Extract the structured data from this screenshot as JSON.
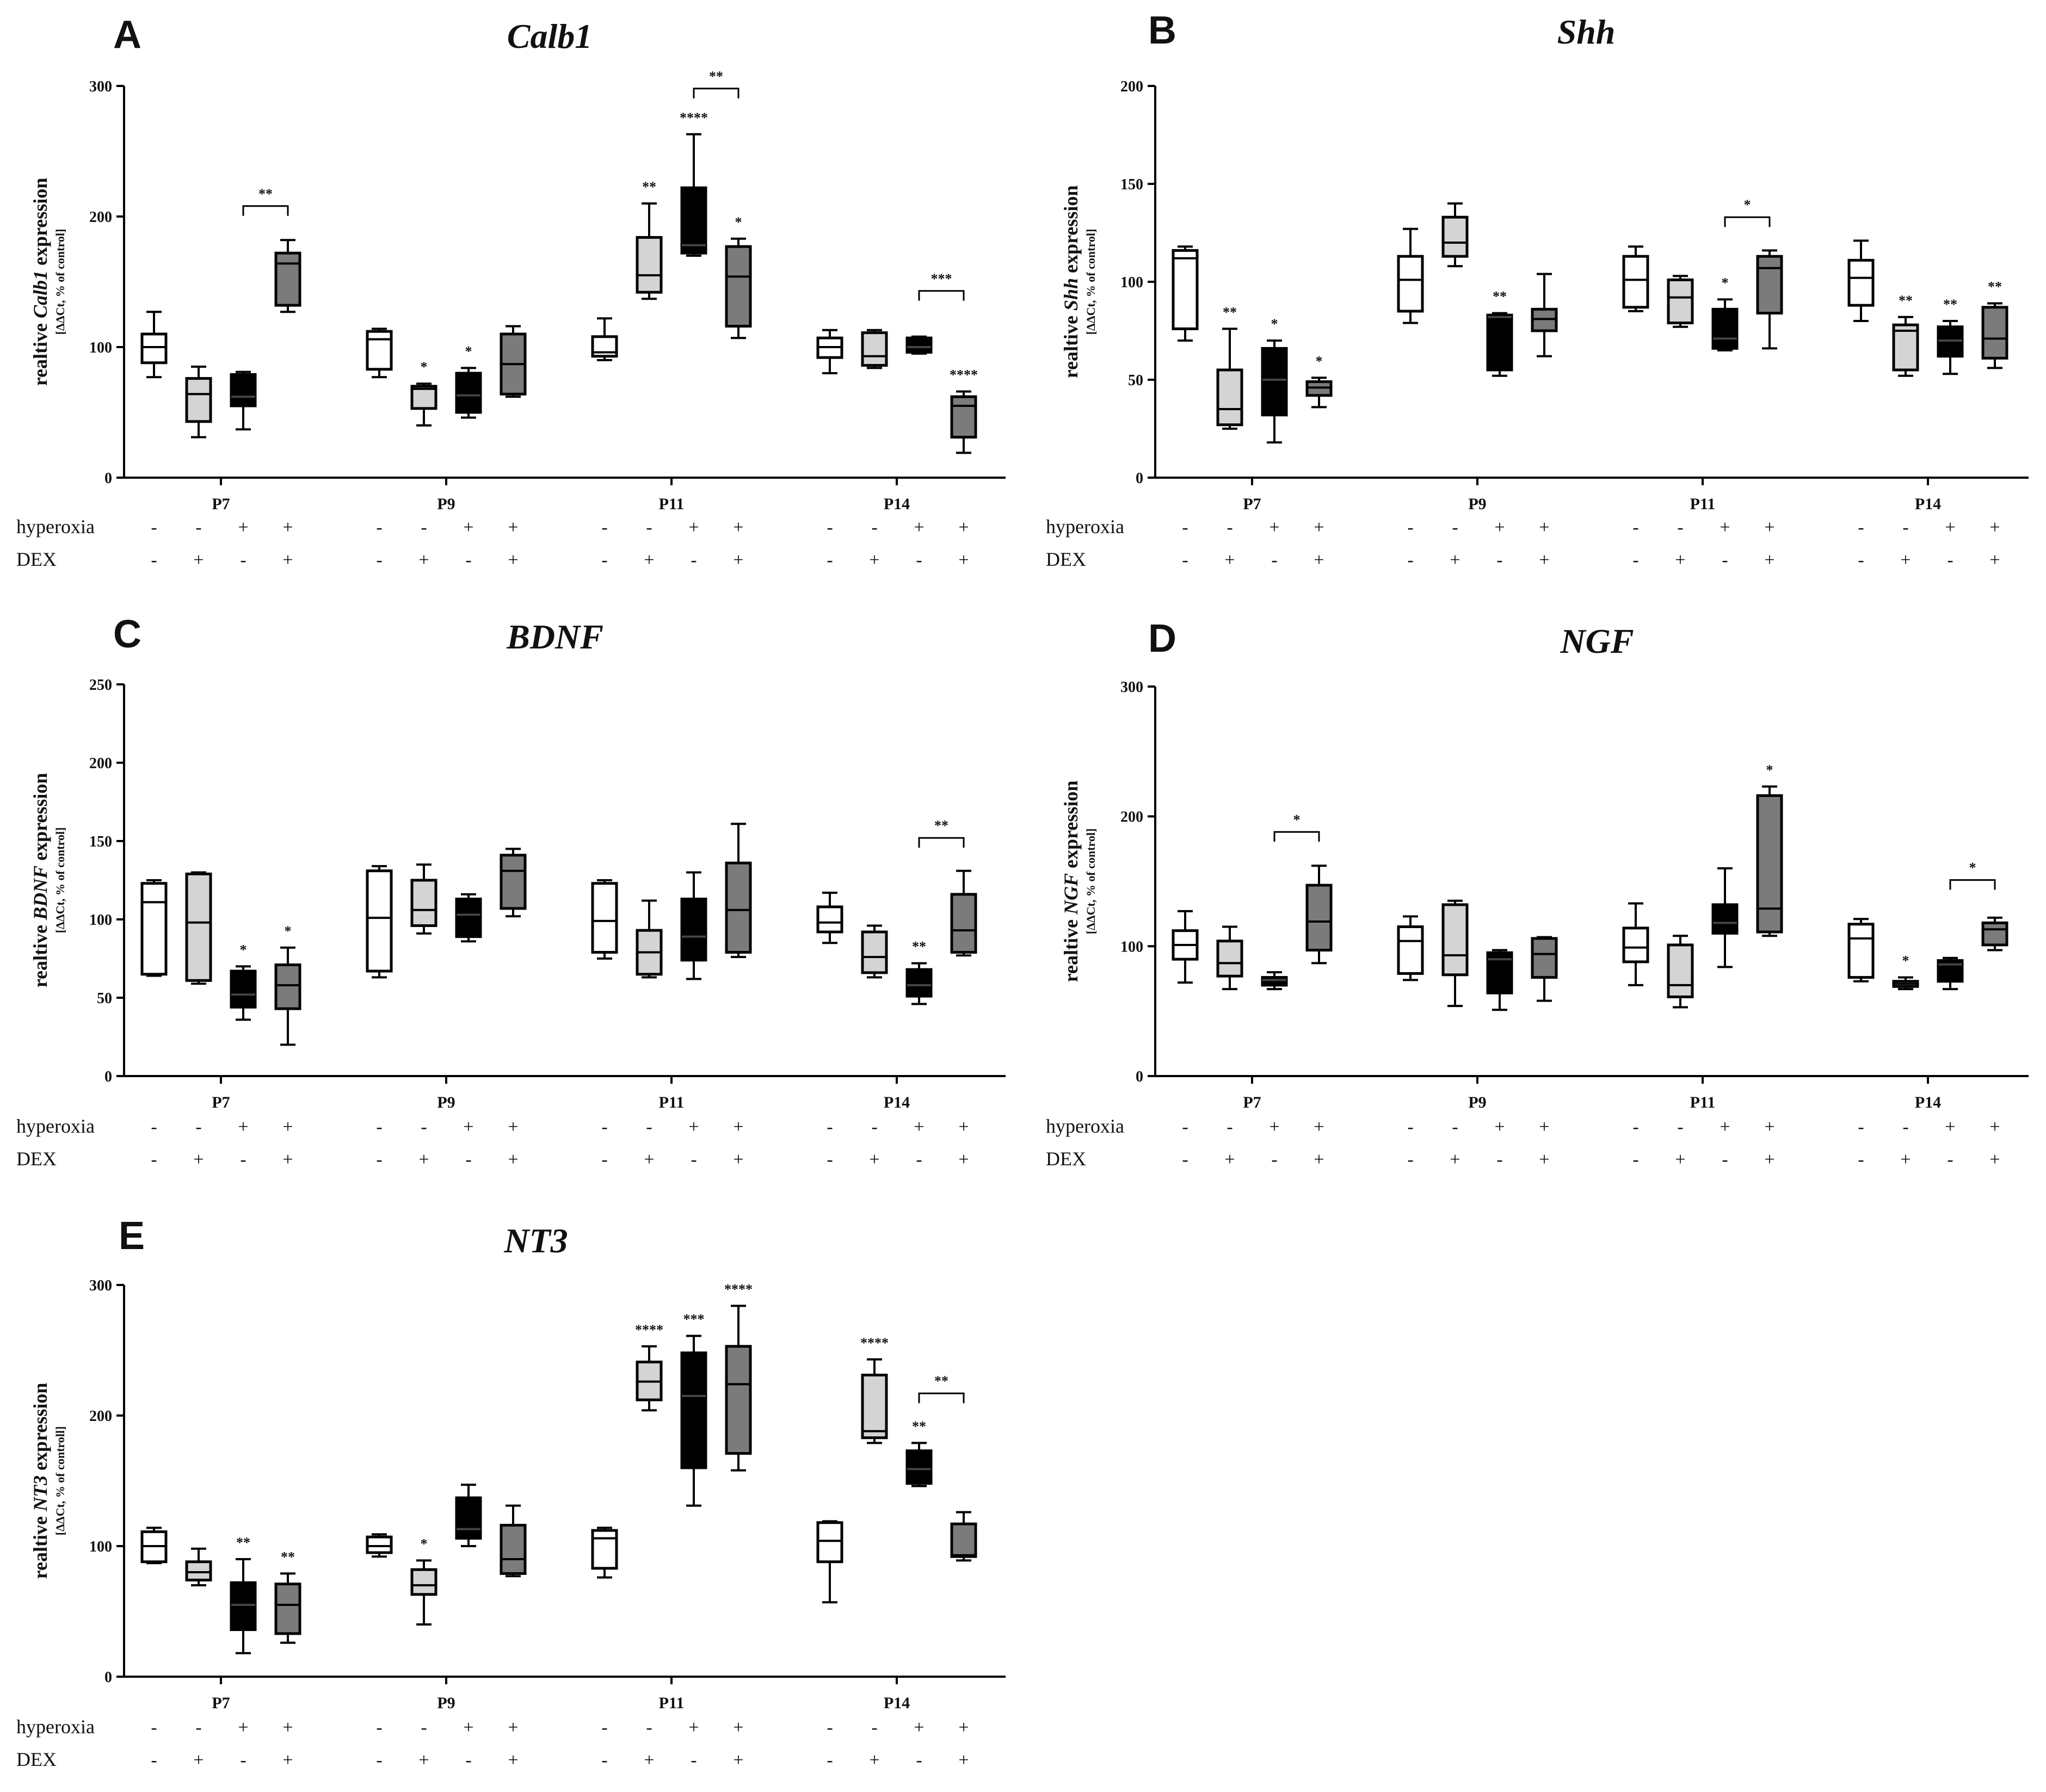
{
  "colors": {
    "box_fills": [
      "#ffffff",
      "#d4d4d4",
      "#000000",
      "#7b7b7b"
    ],
    "line": "#000000"
  },
  "chart_data": [
    {
      "panel": "A",
      "type": "box",
      "title": "Calb1",
      "ylabel_pre": "realtive ",
      "ylabel_gene": "Calb1",
      "ylabel_post": " expression",
      "ylabel_sub": "[ΔΔCt, % of control]",
      "ylim": [
        0,
        300
      ],
      "yticks": [
        0,
        100,
        200,
        300
      ],
      "categories": [
        "P7",
        "P9",
        "P11",
        "P14"
      ],
      "treatment_labels": [
        "hyperoxia",
        "DEX"
      ],
      "hyperoxia": [
        "-",
        "-",
        "+",
        "+"
      ],
      "dex": [
        "-",
        "+",
        "-",
        "+"
      ],
      "boxes": [
        [
          [
            77,
            88,
            100,
            110,
            127
          ],
          [
            31,
            43,
            64,
            76,
            85
          ],
          [
            37,
            55,
            62,
            79,
            81
          ],
          [
            127,
            132,
            164,
            172,
            182
          ]
        ],
        [
          [
            77,
            83,
            106,
            112,
            114
          ],
          [
            40,
            53,
            68,
            70,
            72
          ],
          [
            46,
            50,
            63,
            80,
            84
          ],
          [
            62,
            64,
            87,
            110,
            116
          ]
        ],
        [
          [
            90,
            93,
            96,
            108,
            122
          ],
          [
            137,
            142,
            155,
            184,
            210
          ],
          [
            170,
            172,
            178,
            222,
            263
          ],
          [
            107,
            116,
            154,
            177,
            183
          ]
        ],
        [
          [
            80,
            92,
            100,
            107,
            113
          ],
          [
            84,
            86,
            93,
            111,
            113
          ],
          [
            95,
            96,
            100,
            107,
            108
          ],
          [
            19,
            31,
            55,
            62,
            66
          ]
        ]
      ],
      "stars": [
        {
          "cat": 1,
          "box": 1,
          "label": "*"
        },
        {
          "cat": 1,
          "box": 2,
          "label": "*"
        },
        {
          "cat": 2,
          "box": 1,
          "label": "**"
        },
        {
          "cat": 2,
          "box": 2,
          "label": "****"
        },
        {
          "cat": 2,
          "box": 3,
          "label": "*"
        },
        {
          "cat": 3,
          "box": 3,
          "label": "****"
        }
      ],
      "brackets": [
        {
          "cat": 0,
          "from": 2,
          "to": 3,
          "y": 208,
          "label": "**"
        },
        {
          "cat": 2,
          "from": 2,
          "to": 3,
          "y": 298,
          "label": "**"
        },
        {
          "cat": 3,
          "from": 2,
          "to": 3,
          "y": 143,
          "label": "***"
        }
      ]
    },
    {
      "panel": "B",
      "type": "box",
      "title": "Shh",
      "ylabel_pre": "realtive ",
      "ylabel_gene": "Shh",
      "ylabel_post": " expression",
      "ylabel_sub": "[ΔΔCt, % of control]",
      "ylim": [
        0,
        200
      ],
      "yticks": [
        0,
        50,
        100,
        150,
        200
      ],
      "categories": [
        "P7",
        "P9",
        "P11",
        "P14"
      ],
      "treatment_labels": [
        "hyperoxia",
        "DEX"
      ],
      "hyperoxia": [
        "-",
        "-",
        "+",
        "+"
      ],
      "dex": [
        "-",
        "+",
        "-",
        "+"
      ],
      "boxes": [
        [
          [
            70,
            76,
            112,
            116,
            118
          ],
          [
            25,
            27,
            35,
            55,
            76
          ],
          [
            18,
            32,
            50,
            66,
            70
          ],
          [
            36,
            42,
            46,
            49,
            51
          ]
        ],
        [
          [
            79,
            85,
            101,
            113,
            127
          ],
          [
            108,
            113,
            120,
            133,
            140
          ],
          [
            52,
            55,
            82,
            83,
            84
          ],
          [
            62,
            75,
            81,
            86,
            104
          ]
        ],
        [
          [
            85,
            87,
            101,
            113,
            118
          ],
          [
            77,
            79,
            92,
            101,
            103
          ],
          [
            65,
            66,
            71,
            86,
            91
          ],
          [
            66,
            84,
            107,
            113,
            116
          ]
        ],
        [
          [
            80,
            88,
            102,
            111,
            121
          ],
          [
            52,
            55,
            75,
            78,
            82
          ],
          [
            53,
            62,
            70,
            77,
            80
          ],
          [
            56,
            61,
            71,
            87,
            89
          ]
        ]
      ],
      "stars": [
        {
          "cat": 0,
          "box": 1,
          "label": "**"
        },
        {
          "cat": 0,
          "box": 2,
          "label": "*"
        },
        {
          "cat": 0,
          "box": 3,
          "label": "*"
        },
        {
          "cat": 1,
          "box": 2,
          "label": "**"
        },
        {
          "cat": 2,
          "box": 2,
          "label": "*"
        },
        {
          "cat": 3,
          "box": 1,
          "label": "**"
        },
        {
          "cat": 3,
          "box": 2,
          "label": "**"
        },
        {
          "cat": 3,
          "box": 3,
          "label": "**"
        }
      ],
      "brackets": [
        {
          "cat": 2,
          "from": 2,
          "to": 3,
          "y": 133,
          "label": "*"
        }
      ]
    },
    {
      "panel": "C",
      "type": "box",
      "title": "BDNF",
      "ylabel_pre": "realtive ",
      "ylabel_gene": "BDNF",
      "ylabel_post": " expression",
      "ylabel_sub": "[ΔΔCt, % of control]",
      "ylim": [
        0,
        250
      ],
      "yticks": [
        0,
        50,
        100,
        150,
        200,
        250
      ],
      "categories": [
        "P7",
        "P9",
        "P11",
        "P14"
      ],
      "treatment_labels": [
        "hyperoxia",
        "DEX"
      ],
      "hyperoxia": [
        "-",
        "-",
        "+",
        "+"
      ],
      "dex": [
        "-",
        "+",
        "-",
        "+"
      ],
      "boxes": [
        [
          [
            64,
            65,
            111,
            123,
            125
          ],
          [
            59,
            61,
            98,
            129,
            130
          ],
          [
            36,
            44,
            52,
            67,
            70
          ],
          [
            20,
            43,
            58,
            71,
            82
          ]
        ],
        [
          [
            63,
            67,
            101,
            131,
            134
          ],
          [
            91,
            96,
            106,
            125,
            135
          ],
          [
            86,
            89,
            103,
            113,
            116
          ],
          [
            102,
            107,
            131,
            141,
            145
          ]
        ],
        [
          [
            75,
            79,
            99,
            123,
            125
          ],
          [
            63,
            65,
            79,
            93,
            112
          ],
          [
            62,
            74,
            89,
            113,
            130
          ],
          [
            76,
            79,
            106,
            136,
            161
          ]
        ],
        [
          [
            85,
            92,
            98,
            108,
            117
          ],
          [
            63,
            66,
            76,
            92,
            96
          ],
          [
            46,
            51,
            58,
            68,
            72
          ],
          [
            77,
            79,
            93,
            116,
            131
          ]
        ]
      ],
      "stars": [
        {
          "cat": 0,
          "box": 2,
          "label": "*"
        },
        {
          "cat": 0,
          "box": 3,
          "label": "*"
        },
        {
          "cat": 3,
          "box": 2,
          "label": "**"
        }
      ],
      "brackets": [
        {
          "cat": 3,
          "from": 2,
          "to": 3,
          "y": 152,
          "label": "**"
        }
      ]
    },
    {
      "panel": "D",
      "type": "box",
      "title": "NGF",
      "ylabel_pre": "realtive ",
      "ylabel_gene": "NGF",
      "ylabel_post": " expression",
      "ylabel_sub": "[ΔΔCt, % of control]",
      "ylim": [
        0,
        300
      ],
      "yticks": [
        0,
        100,
        200,
        300
      ],
      "categories": [
        "P7",
        "P9",
        "P11",
        "P14"
      ],
      "treatment_labels": [
        "hyperoxia",
        "DEX"
      ],
      "hyperoxia": [
        "-",
        "-",
        "+",
        "+"
      ],
      "dex": [
        "-",
        "+",
        "-",
        "+"
      ],
      "boxes": [
        [
          [
            72,
            90,
            101,
            112,
            127
          ],
          [
            67,
            77,
            87,
            104,
            115
          ],
          [
            67,
            70,
            74,
            76,
            80
          ],
          [
            87,
            97,
            119,
            147,
            162
          ]
        ],
        [
          [
            74,
            79,
            104,
            115,
            123
          ],
          [
            54,
            78,
            93,
            132,
            135
          ],
          [
            51,
            64,
            90,
            95,
            97
          ],
          [
            58,
            76,
            94,
            106,
            107
          ]
        ],
        [
          [
            70,
            88,
            99,
            114,
            133
          ],
          [
            53,
            61,
            70,
            101,
            108
          ],
          [
            84,
            110,
            118,
            132,
            160
          ],
          [
            108,
            111,
            129,
            216,
            223
          ]
        ],
        [
          [
            73,
            76,
            106,
            117,
            121
          ],
          [
            67,
            69,
            71,
            73,
            76
          ],
          [
            67,
            73,
            86,
            89,
            91
          ],
          [
            97,
            101,
            113,
            118,
            122
          ]
        ]
      ],
      "stars": [
        {
          "cat": 2,
          "box": 3,
          "label": "*"
        },
        {
          "cat": 3,
          "box": 1,
          "label": "*"
        }
      ],
      "brackets": [
        {
          "cat": 0,
          "from": 2,
          "to": 3,
          "y": 188,
          "label": "*"
        },
        {
          "cat": 3,
          "from": 2,
          "to": 3,
          "y": 151,
          "label": "*"
        }
      ]
    },
    {
      "panel": "E",
      "type": "box",
      "title": "NT3",
      "ylabel_pre": "realtive ",
      "ylabel_gene": "NT3",
      "ylabel_post": " expression",
      "ylabel_sub": "[ΔΔCt, % of controll]",
      "ylim": [
        0,
        300
      ],
      "yticks": [
        0,
        100,
        200,
        300
      ],
      "categories": [
        "P7",
        "P9",
        "P11",
        "P14"
      ],
      "treatment_labels": [
        "hyperoxia",
        "DEX"
      ],
      "hyperoxia": [
        "-",
        "-",
        "+",
        "+"
      ],
      "dex": [
        "-",
        "+",
        "-",
        "+"
      ],
      "boxes": [
        [
          [
            87,
            88,
            100,
            111,
            114
          ],
          [
            70,
            74,
            80,
            88,
            98
          ],
          [
            18,
            36,
            55,
            72,
            90
          ],
          [
            26,
            33,
            55,
            71,
            79
          ]
        ],
        [
          [
            92,
            95,
            100,
            107,
            109
          ],
          [
            40,
            63,
            70,
            82,
            89
          ],
          [
            100,
            106,
            113,
            137,
            147
          ],
          [
            77,
            79,
            90,
            116,
            131
          ]
        ],
        [
          [
            76,
            83,
            106,
            112,
            114
          ],
          [
            204,
            212,
            226,
            241,
            253
          ],
          [
            131,
            160,
            215,
            248,
            261
          ],
          [
            158,
            171,
            224,
            253,
            284
          ]
        ],
        [
          [
            57,
            88,
            104,
            118,
            119
          ],
          [
            179,
            183,
            188,
            231,
            243
          ],
          [
            146,
            148,
            159,
            173,
            179
          ],
          [
            89,
            92,
            93,
            117,
            126
          ]
        ]
      ],
      "stars": [
        {
          "cat": 0,
          "box": 2,
          "label": "**"
        },
        {
          "cat": 0,
          "box": 3,
          "label": "**"
        },
        {
          "cat": 1,
          "box": 1,
          "label": "*"
        },
        {
          "cat": 2,
          "box": 1,
          "label": "****"
        },
        {
          "cat": 2,
          "box": 2,
          "label": "***"
        },
        {
          "cat": 2,
          "box": 3,
          "label": "****"
        },
        {
          "cat": 3,
          "box": 1,
          "label": "****"
        },
        {
          "cat": 3,
          "box": 2,
          "label": "**"
        }
      ],
      "brackets": [
        {
          "cat": 3,
          "from": 2,
          "to": 3,
          "y": 217,
          "label": "**"
        }
      ]
    }
  ]
}
